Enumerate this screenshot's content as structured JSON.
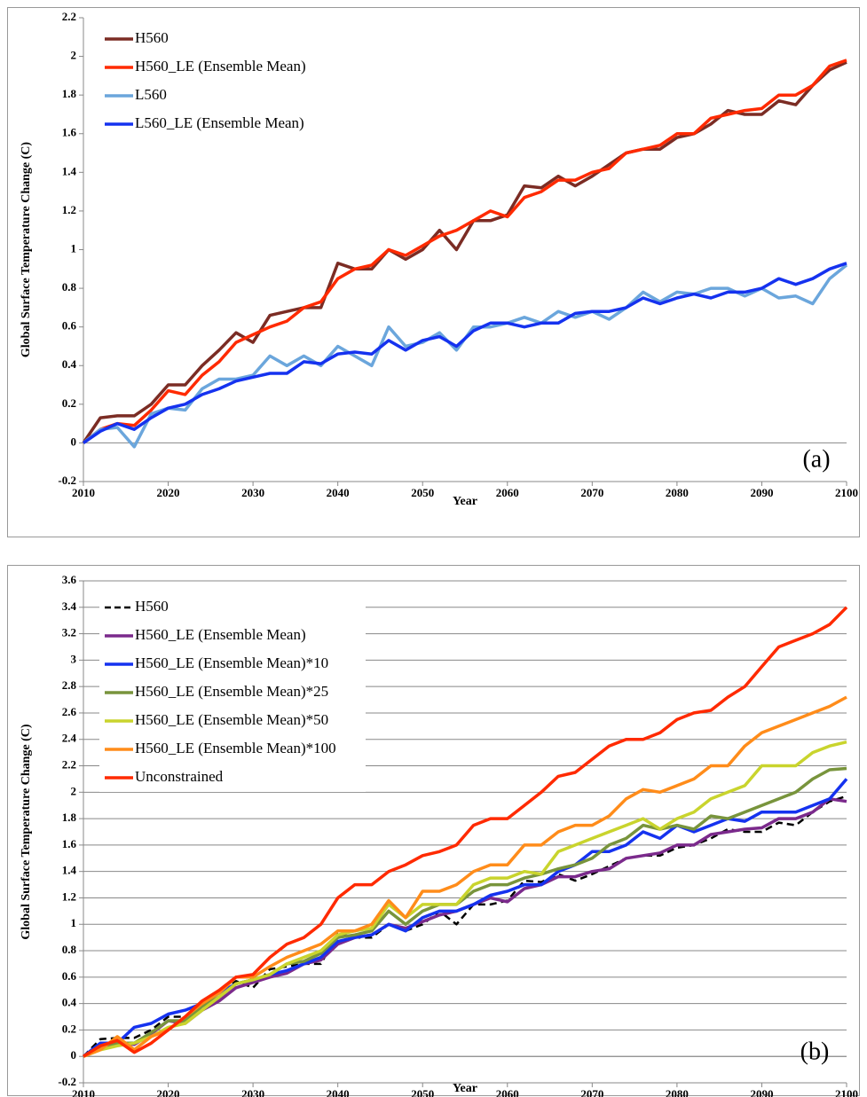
{
  "chart_data": [
    {
      "type": "line",
      "x_label": "Year",
      "y_label": "Global Surface Temperature Change (C)",
      "annotation": "(a)",
      "grid": false,
      "legend": "upper left",
      "x": [
        2010,
        2012,
        2014,
        2016,
        2018,
        2020,
        2022,
        2024,
        2026,
        2028,
        2030,
        2032,
        2034,
        2036,
        2038,
        2040,
        2042,
        2044,
        2046,
        2048,
        2050,
        2052,
        2054,
        2056,
        2058,
        2060,
        2062,
        2064,
        2066,
        2068,
        2070,
        2072,
        2074,
        2076,
        2078,
        2080,
        2082,
        2084,
        2086,
        2088,
        2090,
        2092,
        2094,
        2096,
        2098,
        2100
      ],
      "xlim": [
        2010,
        2100
      ],
      "xticks": [
        2010,
        2020,
        2030,
        2040,
        2050,
        2060,
        2070,
        2080,
        2090,
        2100
      ],
      "ylim": [
        -0.2,
        2.2
      ],
      "yticks": [
        -0.2,
        0,
        0.2,
        0.4,
        0.6,
        0.8,
        1,
        1.2,
        1.4,
        1.6,
        1.8,
        2,
        2.2
      ],
      "series": [
        {
          "name": "H560",
          "color": "#7b2c24",
          "values": [
            0,
            0.13,
            0.14,
            0.14,
            0.2,
            0.3,
            0.3,
            0.4,
            0.48,
            0.57,
            0.52,
            0.66,
            0.68,
            0.7,
            0.7,
            0.93,
            0.9,
            0.9,
            1.0,
            0.95,
            1.0,
            1.1,
            1.0,
            1.15,
            1.15,
            1.18,
            1.33,
            1.32,
            1.38,
            1.33,
            1.38,
            1.44,
            1.5,
            1.52,
            1.52,
            1.58,
            1.6,
            1.65,
            1.72,
            1.7,
            1.7,
            1.77,
            1.75,
            1.85,
            1.93,
            1.97
          ]
        },
        {
          "name": "H560_LE (Ensemble Mean)",
          "color": "#ff2a00",
          "values": [
            0,
            0.07,
            0.1,
            0.09,
            0.17,
            0.27,
            0.25,
            0.35,
            0.42,
            0.52,
            0.56,
            0.6,
            0.63,
            0.7,
            0.73,
            0.85,
            0.9,
            0.92,
            1.0,
            0.97,
            1.02,
            1.07,
            1.1,
            1.15,
            1.2,
            1.17,
            1.27,
            1.3,
            1.36,
            1.36,
            1.4,
            1.42,
            1.5,
            1.52,
            1.54,
            1.6,
            1.6,
            1.68,
            1.7,
            1.72,
            1.73,
            1.8,
            1.8,
            1.85,
            1.95,
            1.98
          ]
        },
        {
          "name": "L560",
          "color": "#6ba6dc",
          "values": [
            0,
            0.07,
            0.08,
            -0.02,
            0.15,
            0.18,
            0.17,
            0.28,
            0.33,
            0.33,
            0.35,
            0.45,
            0.4,
            0.45,
            0.4,
            0.5,
            0.45,
            0.4,
            0.6,
            0.5,
            0.52,
            0.57,
            0.48,
            0.6,
            0.6,
            0.62,
            0.65,
            0.62,
            0.68,
            0.65,
            0.68,
            0.64,
            0.7,
            0.78,
            0.73,
            0.78,
            0.77,
            0.8,
            0.8,
            0.76,
            0.8,
            0.75,
            0.76,
            0.72,
            0.85,
            0.92
          ]
        },
        {
          "name": "L560_LE (Ensemble Mean)",
          "color": "#1532ef",
          "values": [
            0,
            0.06,
            0.1,
            0.07,
            0.13,
            0.18,
            0.2,
            0.25,
            0.28,
            0.32,
            0.34,
            0.36,
            0.36,
            0.42,
            0.41,
            0.46,
            0.47,
            0.46,
            0.53,
            0.48,
            0.53,
            0.55,
            0.5,
            0.58,
            0.62,
            0.62,
            0.6,
            0.62,
            0.62,
            0.67,
            0.68,
            0.68,
            0.7,
            0.75,
            0.72,
            0.75,
            0.77,
            0.75,
            0.78,
            0.78,
            0.8,
            0.85,
            0.82,
            0.85,
            0.9,
            0.93
          ]
        }
      ]
    },
    {
      "type": "line",
      "x_label": "Year",
      "y_label": "Global Surface Temperature Change (C)",
      "annotation": "(b)",
      "grid": true,
      "legend": "upper left",
      "x": [
        2010,
        2012,
        2014,
        2016,
        2018,
        2020,
        2022,
        2024,
        2026,
        2028,
        2030,
        2032,
        2034,
        2036,
        2038,
        2040,
        2042,
        2044,
        2046,
        2048,
        2050,
        2052,
        2054,
        2056,
        2058,
        2060,
        2062,
        2064,
        2066,
        2068,
        2070,
        2072,
        2074,
        2076,
        2078,
        2080,
        2082,
        2084,
        2086,
        2088,
        2090,
        2092,
        2094,
        2096,
        2098,
        2100
      ],
      "xlim": [
        2010,
        2100
      ],
      "xticks": [
        2010,
        2020,
        2030,
        2040,
        2050,
        2060,
        2070,
        2080,
        2090,
        2100
      ],
      "ylim": [
        -0.2,
        3.6
      ],
      "yticks": [
        -0.2,
        0,
        0.2,
        0.4,
        0.6,
        0.8,
        1,
        1.2,
        1.4,
        1.6,
        1.8,
        2,
        2.2,
        2.4,
        2.6,
        2.8,
        3,
        3.2,
        3.4,
        3.6
      ],
      "series": [
        {
          "name": "H560",
          "color": "#000000",
          "dashed": true,
          "values": [
            0,
            0.13,
            0.14,
            0.14,
            0.2,
            0.3,
            0.3,
            0.4,
            0.48,
            0.57,
            0.52,
            0.66,
            0.68,
            0.7,
            0.7,
            0.93,
            0.9,
            0.9,
            1.0,
            0.95,
            1.0,
            1.1,
            1.0,
            1.15,
            1.15,
            1.18,
            1.33,
            1.32,
            1.38,
            1.33,
            1.38,
            1.44,
            1.5,
            1.52,
            1.52,
            1.58,
            1.6,
            1.65,
            1.72,
            1.7,
            1.7,
            1.77,
            1.75,
            1.85,
            1.93,
            1.97
          ]
        },
        {
          "name": "H560_LE (Ensemble Mean)",
          "color": "#7b2a8c",
          "values": [
            0,
            0.07,
            0.1,
            0.09,
            0.17,
            0.27,
            0.25,
            0.35,
            0.42,
            0.52,
            0.56,
            0.6,
            0.63,
            0.7,
            0.73,
            0.85,
            0.9,
            0.92,
            1.0,
            0.97,
            1.02,
            1.07,
            1.1,
            1.15,
            1.2,
            1.17,
            1.27,
            1.3,
            1.36,
            1.36,
            1.4,
            1.42,
            1.5,
            1.52,
            1.54,
            1.6,
            1.6,
            1.68,
            1.7,
            1.72,
            1.73,
            1.8,
            1.8,
            1.85,
            1.95,
            1.93
          ]
        },
        {
          "name": "H560_LE (Ensemble Mean)*10",
          "color": "#1532ef",
          "values": [
            0,
            0.1,
            0.1,
            0.22,
            0.25,
            0.32,
            0.35,
            0.4,
            0.48,
            0.55,
            0.58,
            0.62,
            0.65,
            0.7,
            0.75,
            0.87,
            0.9,
            0.92,
            1.0,
            0.95,
            1.05,
            1.1,
            1.1,
            1.15,
            1.22,
            1.25,
            1.3,
            1.3,
            1.4,
            1.45,
            1.55,
            1.55,
            1.6,
            1.7,
            1.65,
            1.75,
            1.7,
            1.75,
            1.8,
            1.78,
            1.85,
            1.85,
            1.85,
            1.9,
            1.95,
            2.1
          ]
        },
        {
          "name": "H560_LE (Ensemble Mean)*25",
          "color": "#78943c",
          "values": [
            0,
            0.08,
            0.1,
            0.1,
            0.18,
            0.27,
            0.27,
            0.38,
            0.45,
            0.55,
            0.58,
            0.62,
            0.7,
            0.72,
            0.78,
            0.9,
            0.92,
            0.95,
            1.1,
            1.0,
            1.1,
            1.15,
            1.15,
            1.25,
            1.3,
            1.3,
            1.35,
            1.38,
            1.42,
            1.45,
            1.5,
            1.6,
            1.65,
            1.75,
            1.72,
            1.75,
            1.72,
            1.82,
            1.8,
            1.85,
            1.9,
            1.95,
            2.0,
            2.1,
            2.17,
            2.18
          ]
        },
        {
          "name": "H560_LE (Ensemble Mean)*50",
          "color": "#c9d42d",
          "values": [
            0,
            0.05,
            0.08,
            0.1,
            0.15,
            0.22,
            0.25,
            0.35,
            0.45,
            0.55,
            0.58,
            0.62,
            0.7,
            0.75,
            0.8,
            0.92,
            0.95,
            0.97,
            1.15,
            1.05,
            1.15,
            1.15,
            1.15,
            1.3,
            1.35,
            1.35,
            1.4,
            1.38,
            1.55,
            1.6,
            1.65,
            1.7,
            1.75,
            1.8,
            1.72,
            1.8,
            1.85,
            1.95,
            2.0,
            2.05,
            2.2,
            2.2,
            2.2,
            2.3,
            2.35,
            2.38
          ]
        },
        {
          "name": "H560_LE (Ensemble Mean)*100",
          "color": "#ff8c1a",
          "values": [
            0,
            0.05,
            0.15,
            0.05,
            0.15,
            0.2,
            0.3,
            0.4,
            0.48,
            0.6,
            0.6,
            0.68,
            0.75,
            0.8,
            0.85,
            0.95,
            0.95,
            1.0,
            1.18,
            1.05,
            1.25,
            1.25,
            1.3,
            1.4,
            1.45,
            1.45,
            1.6,
            1.6,
            1.7,
            1.75,
            1.75,
            1.82,
            1.95,
            2.02,
            2.0,
            2.05,
            2.1,
            2.2,
            2.2,
            2.35,
            2.45,
            2.5,
            2.55,
            2.6,
            2.65,
            2.72
          ]
        },
        {
          "name": "Unconstrained",
          "color": "#ff2a00",
          "values": [
            0,
            0.08,
            0.12,
            0.03,
            0.1,
            0.2,
            0.3,
            0.42,
            0.5,
            0.6,
            0.62,
            0.75,
            0.85,
            0.9,
            1.0,
            1.2,
            1.3,
            1.3,
            1.4,
            1.45,
            1.52,
            1.55,
            1.6,
            1.75,
            1.8,
            1.8,
            1.9,
            2.0,
            2.12,
            2.15,
            2.25,
            2.35,
            2.4,
            2.4,
            2.45,
            2.55,
            2.6,
            2.62,
            2.72,
            2.8,
            2.95,
            3.1,
            3.15,
            3.2,
            3.27,
            3.4
          ]
        }
      ]
    }
  ]
}
